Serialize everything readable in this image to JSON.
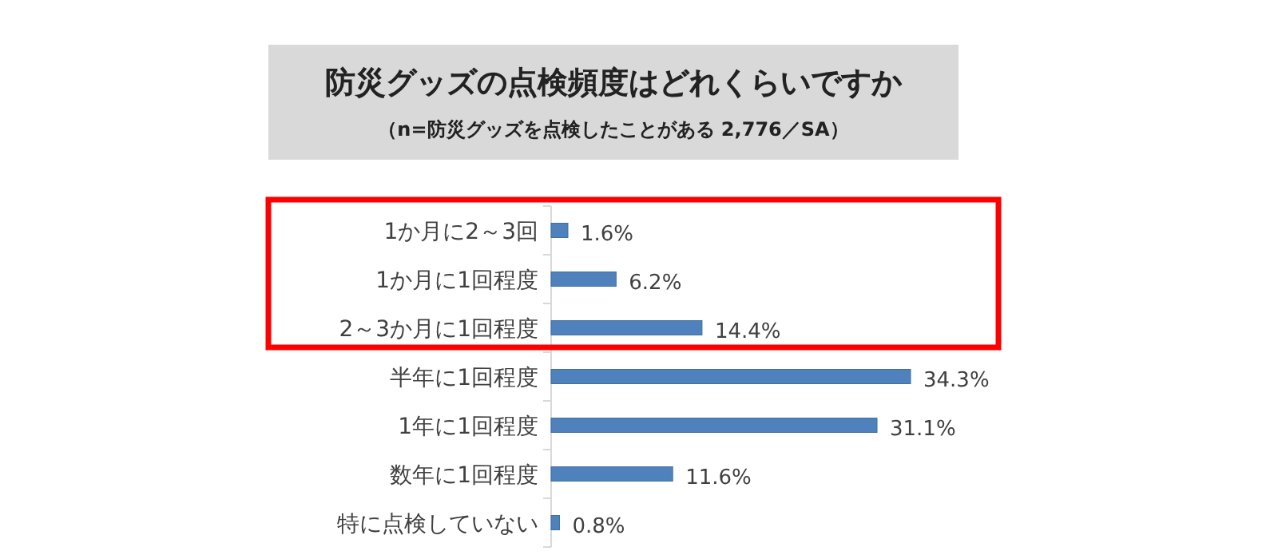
{
  "chart_data": {
    "type": "bar",
    "orientation": "horizontal",
    "title": "防災グッズの点検頻度はどれくらいですか",
    "subtitle": "（n=防災グッズを点検したことがある 2,776／SA）",
    "categories": [
      "1か月に2～3回",
      "1か月に1回程度",
      "2～3か月に1回程度",
      "半年に1回程度",
      "1年に1回程度",
      "数年に1回程度",
      "特に点検していない"
    ],
    "values": [
      1.6,
      6.2,
      14.4,
      34.3,
      31.1,
      11.6,
      0.8
    ],
    "value_labels": [
      "1.6%",
      "6.2%",
      "14.4%",
      "34.3%",
      "31.1%",
      "11.6%",
      "0.8%"
    ],
    "color": "#4f81bd"
  }
}
